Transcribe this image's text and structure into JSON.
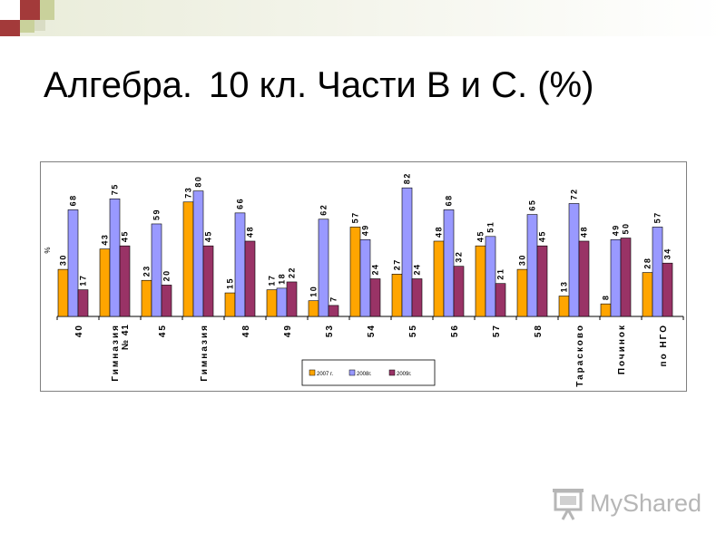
{
  "slide": {
    "title_part1": "Алгебра.",
    "title_part2": "10 кл. Части В и С. (%)"
  },
  "logo": {
    "text": "MyShared",
    "icon": "presentation-board-icon"
  },
  "colors": {
    "series": [
      "#FFA500",
      "#9999FF",
      "#993366"
    ],
    "deco": [
      "#a33a3a",
      "#c9d19b",
      "#d9dcc4"
    ]
  },
  "chart_data": {
    "type": "bar",
    "ylabel": "%",
    "categories": [
      "40",
      "Гимназия № 41",
      "45",
      "Гимназия",
      "48",
      "49",
      "53",
      "54",
      "55",
      "56",
      "57",
      "58",
      "Тарасково",
      "Починок",
      "по НГО"
    ],
    "series": [
      {
        "name": "2007 г.",
        "values": [
          30,
          43,
          23,
          73,
          15,
          17,
          10,
          57,
          27,
          48,
          45,
          30,
          13,
          8,
          28
        ]
      },
      {
        "name": "2008г.",
        "values": [
          68,
          75,
          59,
          80,
          66,
          18,
          62,
          49,
          82,
          68,
          51,
          65,
          72,
          49,
          57
        ]
      },
      {
        "name": "2009г.",
        "values": [
          17,
          45,
          20,
          45,
          48,
          22,
          7,
          24,
          24,
          32,
          21,
          45,
          48,
          50,
          34
        ]
      }
    ],
    "ylim": [
      0,
      85
    ],
    "grid": false,
    "legend": "bottom"
  }
}
